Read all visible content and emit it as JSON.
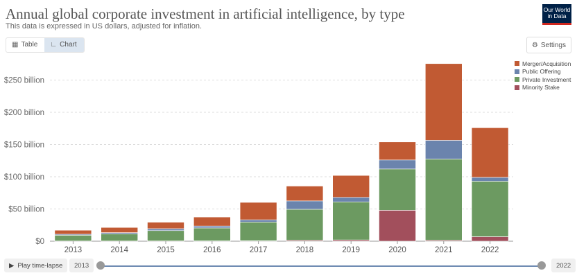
{
  "header": {
    "title": "Annual global corporate investment in artificial intelligence, by type",
    "subtitle": "This data is expressed in US dollars, adjusted for inflation.",
    "logo_line1": "Our World",
    "logo_line2": "in Data"
  },
  "tabs": [
    {
      "label": "Table",
      "icon": "table-icon"
    },
    {
      "label": "Chart",
      "icon": "chart-icon"
    }
  ],
  "settings_label": "Settings",
  "footer": {
    "play_label": "Play time-lapse",
    "start_year": "2013",
    "end_year": "2022"
  },
  "colors": {
    "merger": "#c15a33",
    "public": "#6b84ad",
    "private": "#6c9a61",
    "minority": "#a24f5c"
  },
  "chart_data": {
    "type": "bar",
    "stacked": true,
    "categories": [
      "2013",
      "2014",
      "2015",
      "2016",
      "2017",
      "2018",
      "2019",
      "2020",
      "2021",
      "2022"
    ],
    "series": [
      {
        "name": "Minority Stake",
        "color": "#a24f5c",
        "values": [
          0.3,
          0.3,
          0.4,
          0.5,
          0.7,
          1.5,
          2,
          48,
          1.5,
          7
        ]
      },
      {
        "name": "Private Investment",
        "color": "#6c9a61",
        "values": [
          9,
          11,
          16,
          20,
          29,
          48,
          59,
          64,
          126,
          86
        ]
      },
      {
        "name": "Public Offering",
        "color": "#6b84ad",
        "values": [
          1.5,
          2,
          3,
          3,
          3.5,
          13,
          7,
          14,
          29,
          6
        ]
      },
      {
        "name": "Merger/Acquisition",
        "color": "#c15a33",
        "values": [
          6.2,
          8,
          10,
          14,
          27,
          23,
          34,
          28,
          119,
          77
        ]
      }
    ],
    "legend_order": [
      "Merger/Acquisition",
      "Public Offering",
      "Private Investment",
      "Minority Stake"
    ],
    "yticks": [
      "$0",
      "$50 billion",
      "$100 billion",
      "$150 billion",
      "$200 billion",
      "$250 billion"
    ],
    "ylim": [
      0,
      270
    ],
    "grid": true,
    "legend_position": "top-right"
  }
}
